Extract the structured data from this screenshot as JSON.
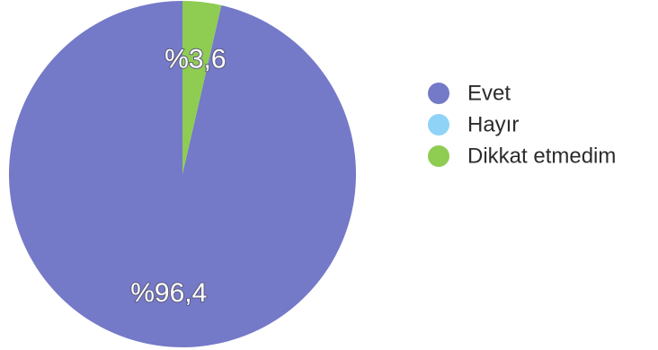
{
  "chart_data": {
    "type": "pie",
    "title": "",
    "legend_position": "right",
    "slices": [
      {
        "name": "Evet",
        "value": 96.4,
        "label": "%96,4",
        "color": "#7479c8"
      },
      {
        "name": "Hayır",
        "value": 0,
        "label": "",
        "color": "#8fd3f7"
      },
      {
        "name": "Dikkat etmedim",
        "value": 3.6,
        "label": "%3,6",
        "color": "#8fcc52"
      }
    ]
  }
}
